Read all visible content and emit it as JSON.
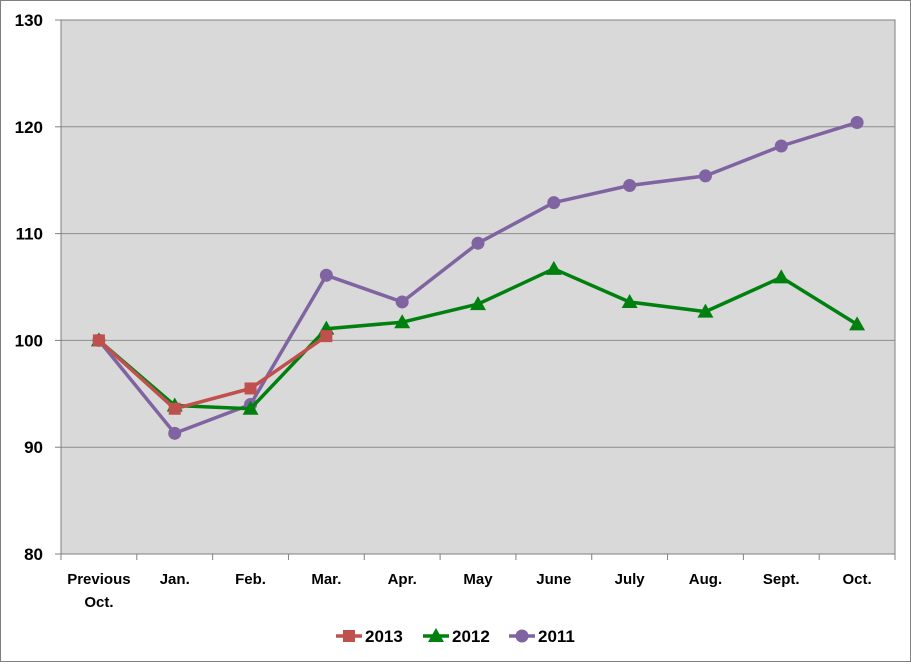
{
  "chart_data": {
    "type": "line",
    "title": "",
    "xlabel": "",
    "ylabel": "",
    "ylim": [
      80,
      130
    ],
    "yticks": [
      "80",
      "90",
      "100",
      "110",
      "120",
      "130"
    ],
    "categories": [
      [
        "Previous",
        "Oct."
      ],
      [
        "Jan."
      ],
      [
        "Feb."
      ],
      [
        "Mar."
      ],
      [
        "Apr."
      ],
      [
        "May"
      ],
      [
        "June"
      ],
      [
        "July"
      ],
      [
        "Aug."
      ],
      [
        "Sept."
      ],
      [
        "Oct."
      ]
    ],
    "grid": true,
    "legend": "bottom",
    "plot_background": "#d9d9d9",
    "series": [
      {
        "name": "2013",
        "color": "#c0504d",
        "marker": "square",
        "values": [
          100,
          93.6,
          95.5,
          100.4,
          null,
          null,
          null,
          null,
          null,
          null,
          null
        ]
      },
      {
        "name": "2012",
        "color": "#00800f",
        "marker": "triangle",
        "values": [
          100,
          93.9,
          93.6,
          101.1,
          101.7,
          103.4,
          106.7,
          103.6,
          102.7,
          105.9,
          101.5
        ]
      },
      {
        "name": "2011",
        "color": "#8064a2",
        "marker": "circle",
        "values": [
          100,
          91.3,
          94.0,
          106.1,
          103.6,
          109.1,
          112.9,
          114.5,
          115.4,
          118.2,
          120.4
        ]
      }
    ]
  }
}
